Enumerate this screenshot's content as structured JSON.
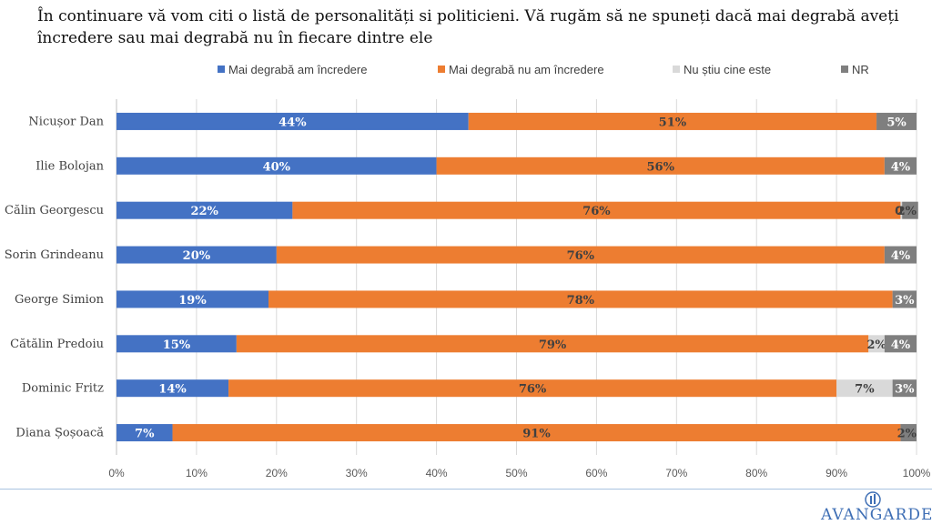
{
  "title_lines": [
    "În continuare vă vom citi o listă de personalități si politicieni. Vă rugăm să ne spuneți dacă mai degrabă aveți",
    "încredere sau mai degrabă nu în fiecare dintre ele"
  ],
  "logo": {
    "text": "AVANGARDE"
  },
  "chart_data": {
    "type": "bar",
    "orientation": "horizontal",
    "stacked": true,
    "percent_stacked": true,
    "categories": [
      "Nicușor Dan",
      "Ilie Bolojan",
      "Călin Georgescu",
      "Sorin Grindeanu",
      "George Simion",
      "Cătălin Predoiu",
      "Dominic Fritz",
      "Diana Șoșoacă"
    ],
    "series": [
      {
        "name": "Mai degrabă am încredere",
        "color": "#4472C4",
        "label_color": "#ffffff",
        "values": [
          44,
          40,
          22,
          20,
          19,
          15,
          14,
          7
        ],
        "labels": [
          "44%",
          "40%",
          "22%",
          "20%",
          "19%",
          "15%",
          "14%",
          "7%"
        ]
      },
      {
        "name": "Mai degrabă nu am încredere",
        "color": "#ED7D31",
        "label_color": "#404040",
        "values": [
          51,
          56,
          76,
          76,
          78,
          79,
          76,
          91
        ],
        "labels": [
          "51%",
          "56%",
          "76%",
          "76%",
          "78%",
          "79%",
          "76%",
          "91%"
        ]
      },
      {
        "name": "Nu știu cine este",
        "color": "#D9D9D9",
        "label_color": "#404040",
        "values": [
          0,
          0,
          0.2,
          0,
          0,
          2,
          7,
          0
        ],
        "labels": [
          "",
          "",
          "0",
          "",
          "",
          "2%",
          "7%",
          ""
        ]
      },
      {
        "name": "NR",
        "color": "#7F7F7F",
        "label_color": "#ffffff",
        "values": [
          5,
          4,
          2,
          4,
          3,
          4,
          3,
          2
        ],
        "labels": [
          "5%",
          "4%",
          "2%",
          "4%",
          "3%",
          "4%",
          "3%",
          "2%"
        ]
      }
    ],
    "xlim": [
      0,
      100
    ],
    "xticks": [
      "0%",
      "10%",
      "20%",
      "30%",
      "40%",
      "50%",
      "60%",
      "70%",
      "80%",
      "90%",
      "100%"
    ],
    "grid": true,
    "legend": "top"
  }
}
